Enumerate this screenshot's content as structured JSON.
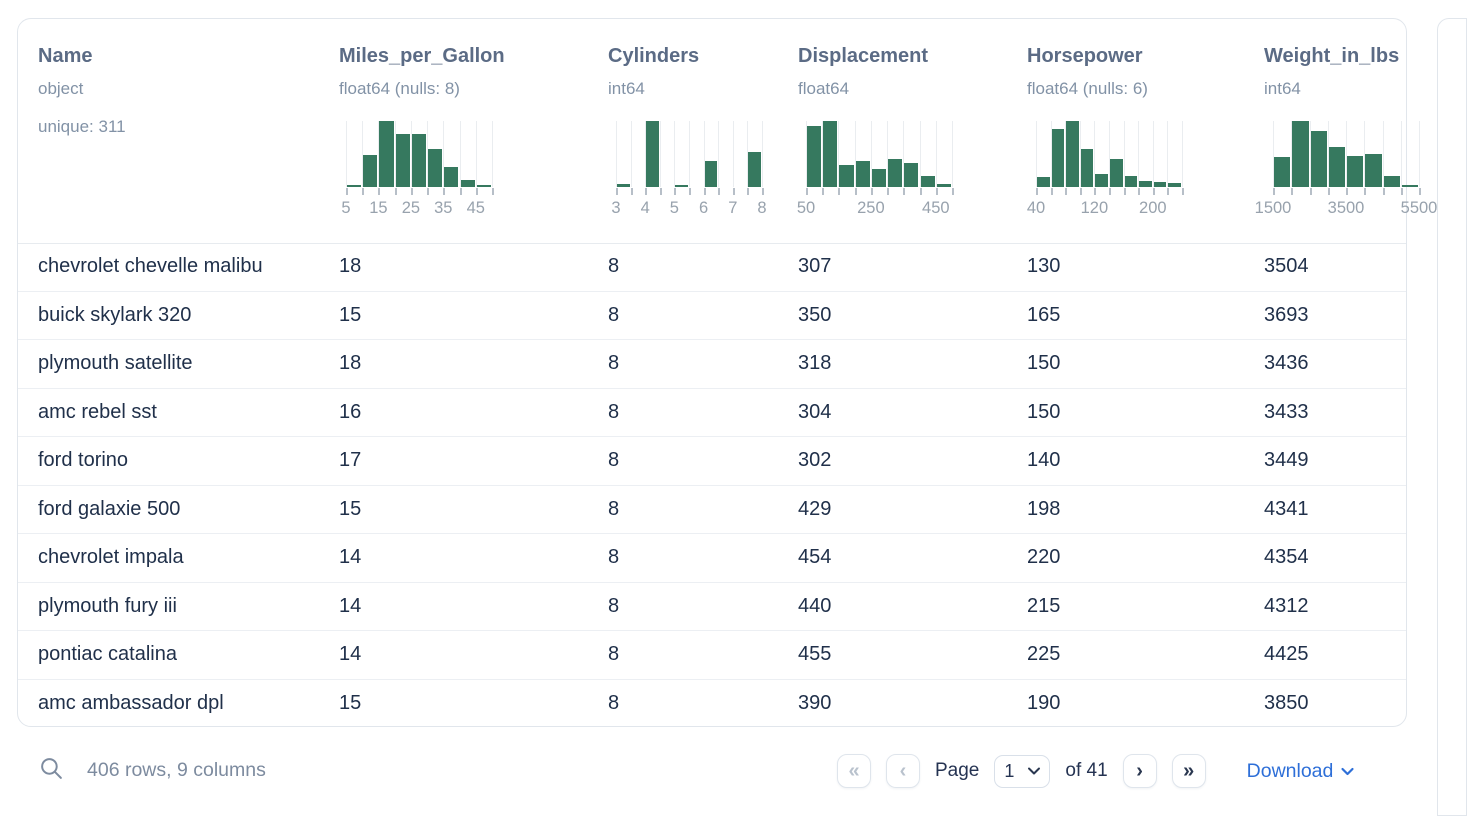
{
  "columns": [
    {
      "name": "Name",
      "dtype": "object",
      "note": "unique: 311",
      "hist": null
    },
    {
      "name": "Miles_per_Gallon",
      "dtype": "float64 (nulls: 8)",
      "note": "",
      "hist": {
        "values": [
          3,
          48,
          100,
          80,
          80,
          57,
          30,
          10,
          3
        ],
        "tick_labels": [
          {
            "pos": 0,
            "text": "5"
          },
          {
            "pos": 2,
            "text": "15"
          },
          {
            "pos": 4,
            "text": "25"
          },
          {
            "pos": 6,
            "text": "35"
          },
          {
            "pos": 8,
            "text": "45"
          }
        ]
      }
    },
    {
      "name": "Cylinders",
      "dtype": "int64",
      "note": "",
      "hist": {
        "values": [
          4,
          0,
          100,
          0,
          3,
          0,
          40,
          0,
          0,
          53
        ],
        "tick_labels": [
          {
            "pos": 0,
            "text": "3"
          },
          {
            "pos": 2,
            "text": "4"
          },
          {
            "pos": 4,
            "text": "5"
          },
          {
            "pos": 6,
            "text": "6"
          },
          {
            "pos": 8,
            "text": "7"
          },
          {
            "pos": 10,
            "text": "8"
          }
        ]
      }
    },
    {
      "name": "Displacement",
      "dtype": "float64",
      "note": "",
      "hist": {
        "values": [
          93,
          100,
          33,
          40,
          28,
          43,
          37,
          17,
          5
        ],
        "tick_labels": [
          {
            "pos": 0,
            "text": "50"
          },
          {
            "pos": 4,
            "text": "250"
          },
          {
            "pos": 8,
            "text": "450"
          }
        ]
      }
    },
    {
      "name": "Horsepower",
      "dtype": "float64 (nulls: 6)",
      "note": "",
      "hist": {
        "values": [
          15,
          88,
          100,
          58,
          20,
          43,
          17,
          9,
          7,
          6
        ],
        "tick_labels": [
          {
            "pos": 0,
            "text": "40"
          },
          {
            "pos": 4,
            "text": "120"
          },
          {
            "pos": 8,
            "text": "200"
          }
        ]
      }
    },
    {
      "name": "Weight_in_lbs",
      "dtype": "int64",
      "note": "",
      "hist": {
        "values": [
          45,
          100,
          85,
          60,
          47,
          50,
          16,
          3
        ],
        "tick_labels": [
          {
            "pos": 0,
            "text": "1500"
          },
          {
            "pos": 4,
            "text": "3500"
          },
          {
            "pos": 8,
            "text": "5500"
          }
        ]
      }
    }
  ],
  "rows": [
    [
      "chevrolet chevelle malibu",
      "18",
      "8",
      "307",
      "130",
      "3504"
    ],
    [
      "buick skylark 320",
      "15",
      "8",
      "350",
      "165",
      "3693"
    ],
    [
      "plymouth satellite",
      "18",
      "8",
      "318",
      "150",
      "3436"
    ],
    [
      "amc rebel sst",
      "16",
      "8",
      "304",
      "150",
      "3433"
    ],
    [
      "ford torino",
      "17",
      "8",
      "302",
      "140",
      "3449"
    ],
    [
      "ford galaxie 500",
      "15",
      "8",
      "429",
      "198",
      "4341"
    ],
    [
      "chevrolet impala",
      "14",
      "8",
      "454",
      "220",
      "4354"
    ],
    [
      "plymouth fury iii",
      "14",
      "8",
      "440",
      "215",
      "4312"
    ],
    [
      "pontiac catalina",
      "14",
      "8",
      "455",
      "225",
      "4425"
    ],
    [
      "amc ambassador dpl",
      "15",
      "8",
      "390",
      "190",
      "3850"
    ]
  ],
  "footer": {
    "summary": "406 rows, 9 columns",
    "pagination": {
      "first": "«",
      "prev": "‹",
      "page_label": "Page",
      "page_value": "1",
      "total_label": "of 41",
      "next": "›",
      "last": "»"
    },
    "download_label": "Download"
  },
  "colors": {
    "histogram_bar": "#36795f",
    "link_blue": "#2e6fd8"
  }
}
